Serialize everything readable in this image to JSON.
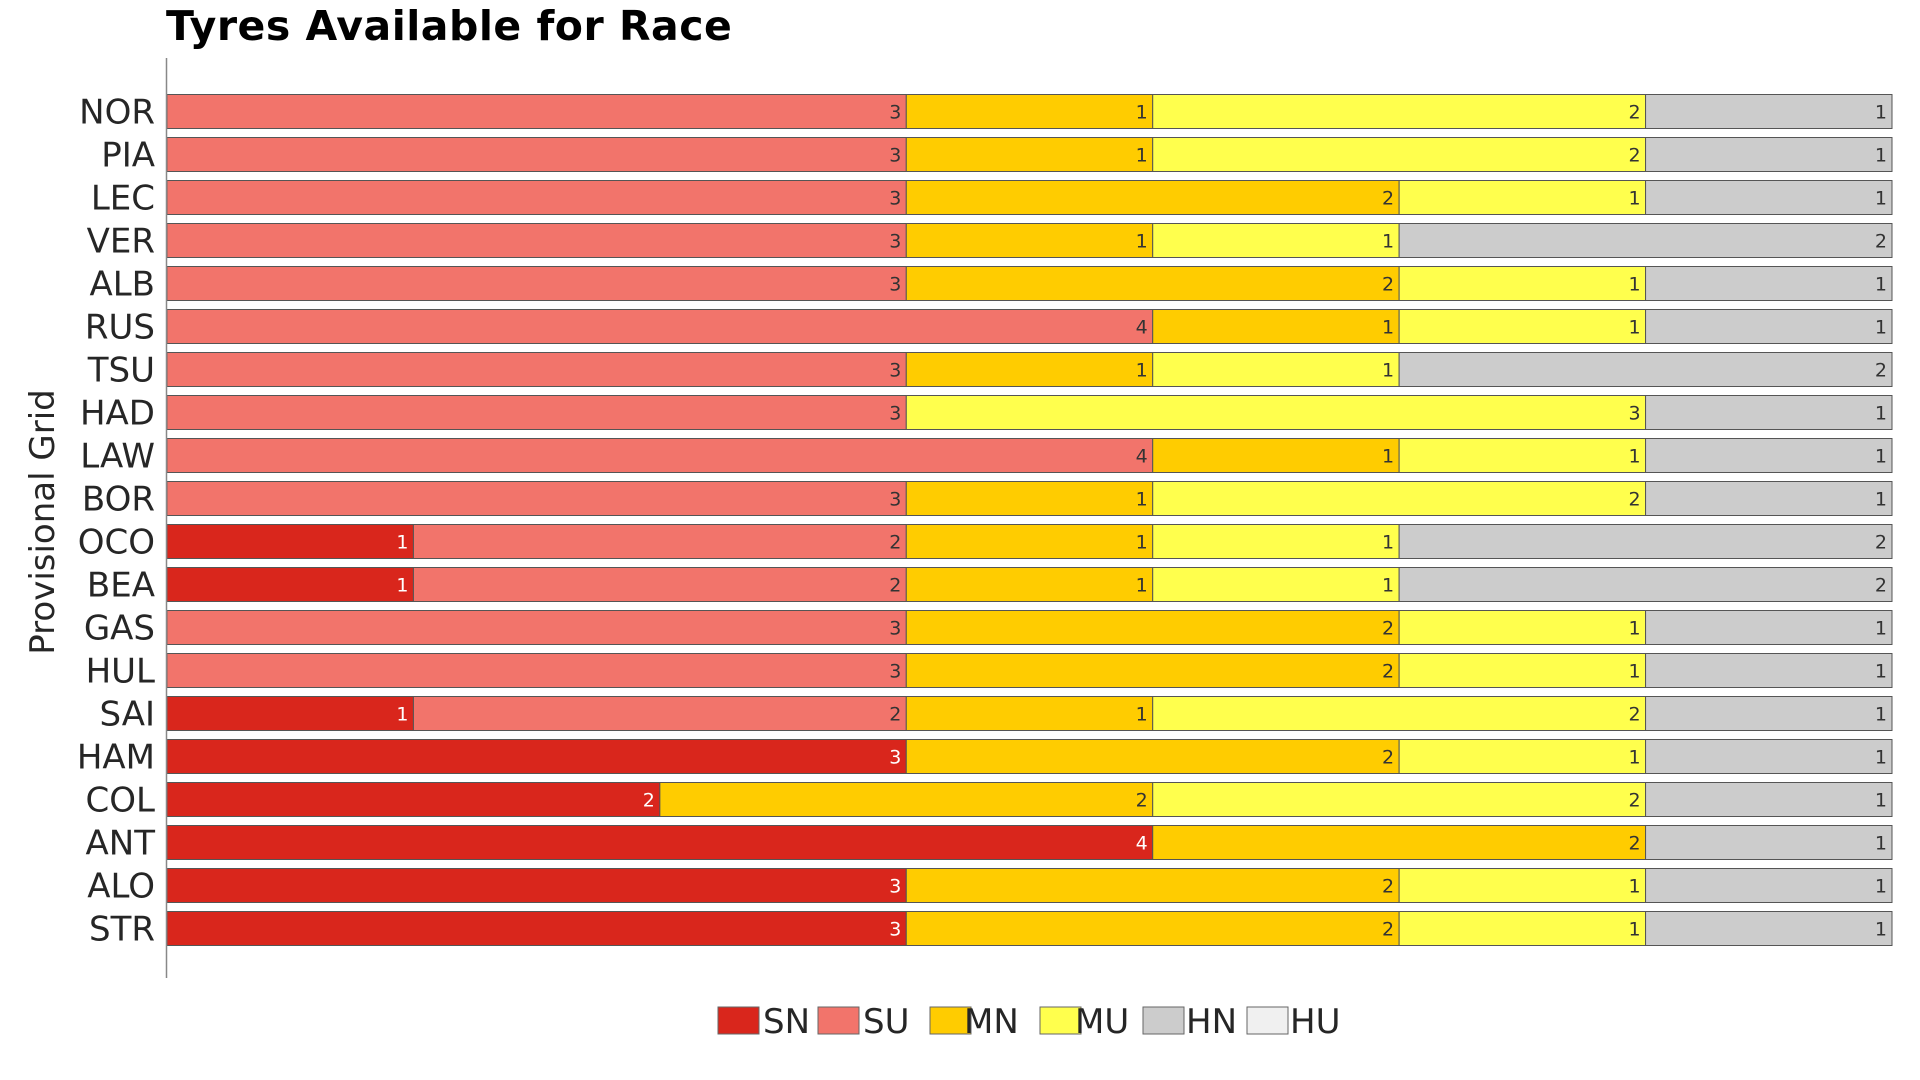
{
  "chart_data": {
    "type": "bar",
    "orientation": "horizontal",
    "stacked": true,
    "title": "Tyres Available for Race",
    "ylabel": "Provisional Grid",
    "xlim": [
      0,
      7
    ],
    "categories": [
      "NOR",
      "PIA",
      "LEC",
      "VER",
      "ALB",
      "RUS",
      "TSU",
      "HAD",
      "LAW",
      "BOR",
      "OCO",
      "BEA",
      "GAS",
      "HUL",
      "SAI",
      "HAM",
      "COL",
      "ANT",
      "ALO",
      "STR"
    ],
    "series": [
      {
        "name": "SN",
        "color": "#d9261c",
        "label_color": "#ffffff",
        "values": [
          0,
          0,
          0,
          0,
          0,
          0,
          0,
          0,
          0,
          0,
          1,
          1,
          0,
          0,
          1,
          3,
          2,
          4,
          3,
          3
        ]
      },
      {
        "name": "SU",
        "color": "#f2746b",
        "label_color": "#333333",
        "values": [
          3,
          3,
          3,
          3,
          3,
          4,
          3,
          3,
          4,
          3,
          2,
          2,
          3,
          3,
          2,
          0,
          0,
          0,
          0,
          0
        ]
      },
      {
        "name": "MN",
        "color": "#ffcc00",
        "label_color": "#333333",
        "values": [
          1,
          1,
          2,
          1,
          2,
          1,
          1,
          0,
          1,
          1,
          1,
          1,
          2,
          2,
          1,
          2,
          2,
          2,
          2,
          2
        ]
      },
      {
        "name": "MU",
        "color": "#ffff4d",
        "label_color": "#333333",
        "values": [
          2,
          2,
          1,
          1,
          1,
          1,
          1,
          3,
          1,
          2,
          1,
          1,
          1,
          1,
          2,
          1,
          2,
          0,
          1,
          1
        ]
      },
      {
        "name": "HN",
        "color": "#cccccc",
        "label_color": "#333333",
        "values": [
          1,
          1,
          1,
          2,
          1,
          1,
          2,
          1,
          1,
          1,
          2,
          2,
          1,
          1,
          1,
          1,
          1,
          1,
          1,
          1
        ]
      },
      {
        "name": "HU",
        "color": "#f0f0f0",
        "label_color": "#333333",
        "values": [
          0,
          0,
          0,
          0,
          0,
          0,
          0,
          0,
          0,
          0,
          0,
          0,
          0,
          0,
          0,
          0,
          0,
          0,
          0,
          0
        ]
      }
    ],
    "legend_position": "bottom-center",
    "grid": false
  }
}
